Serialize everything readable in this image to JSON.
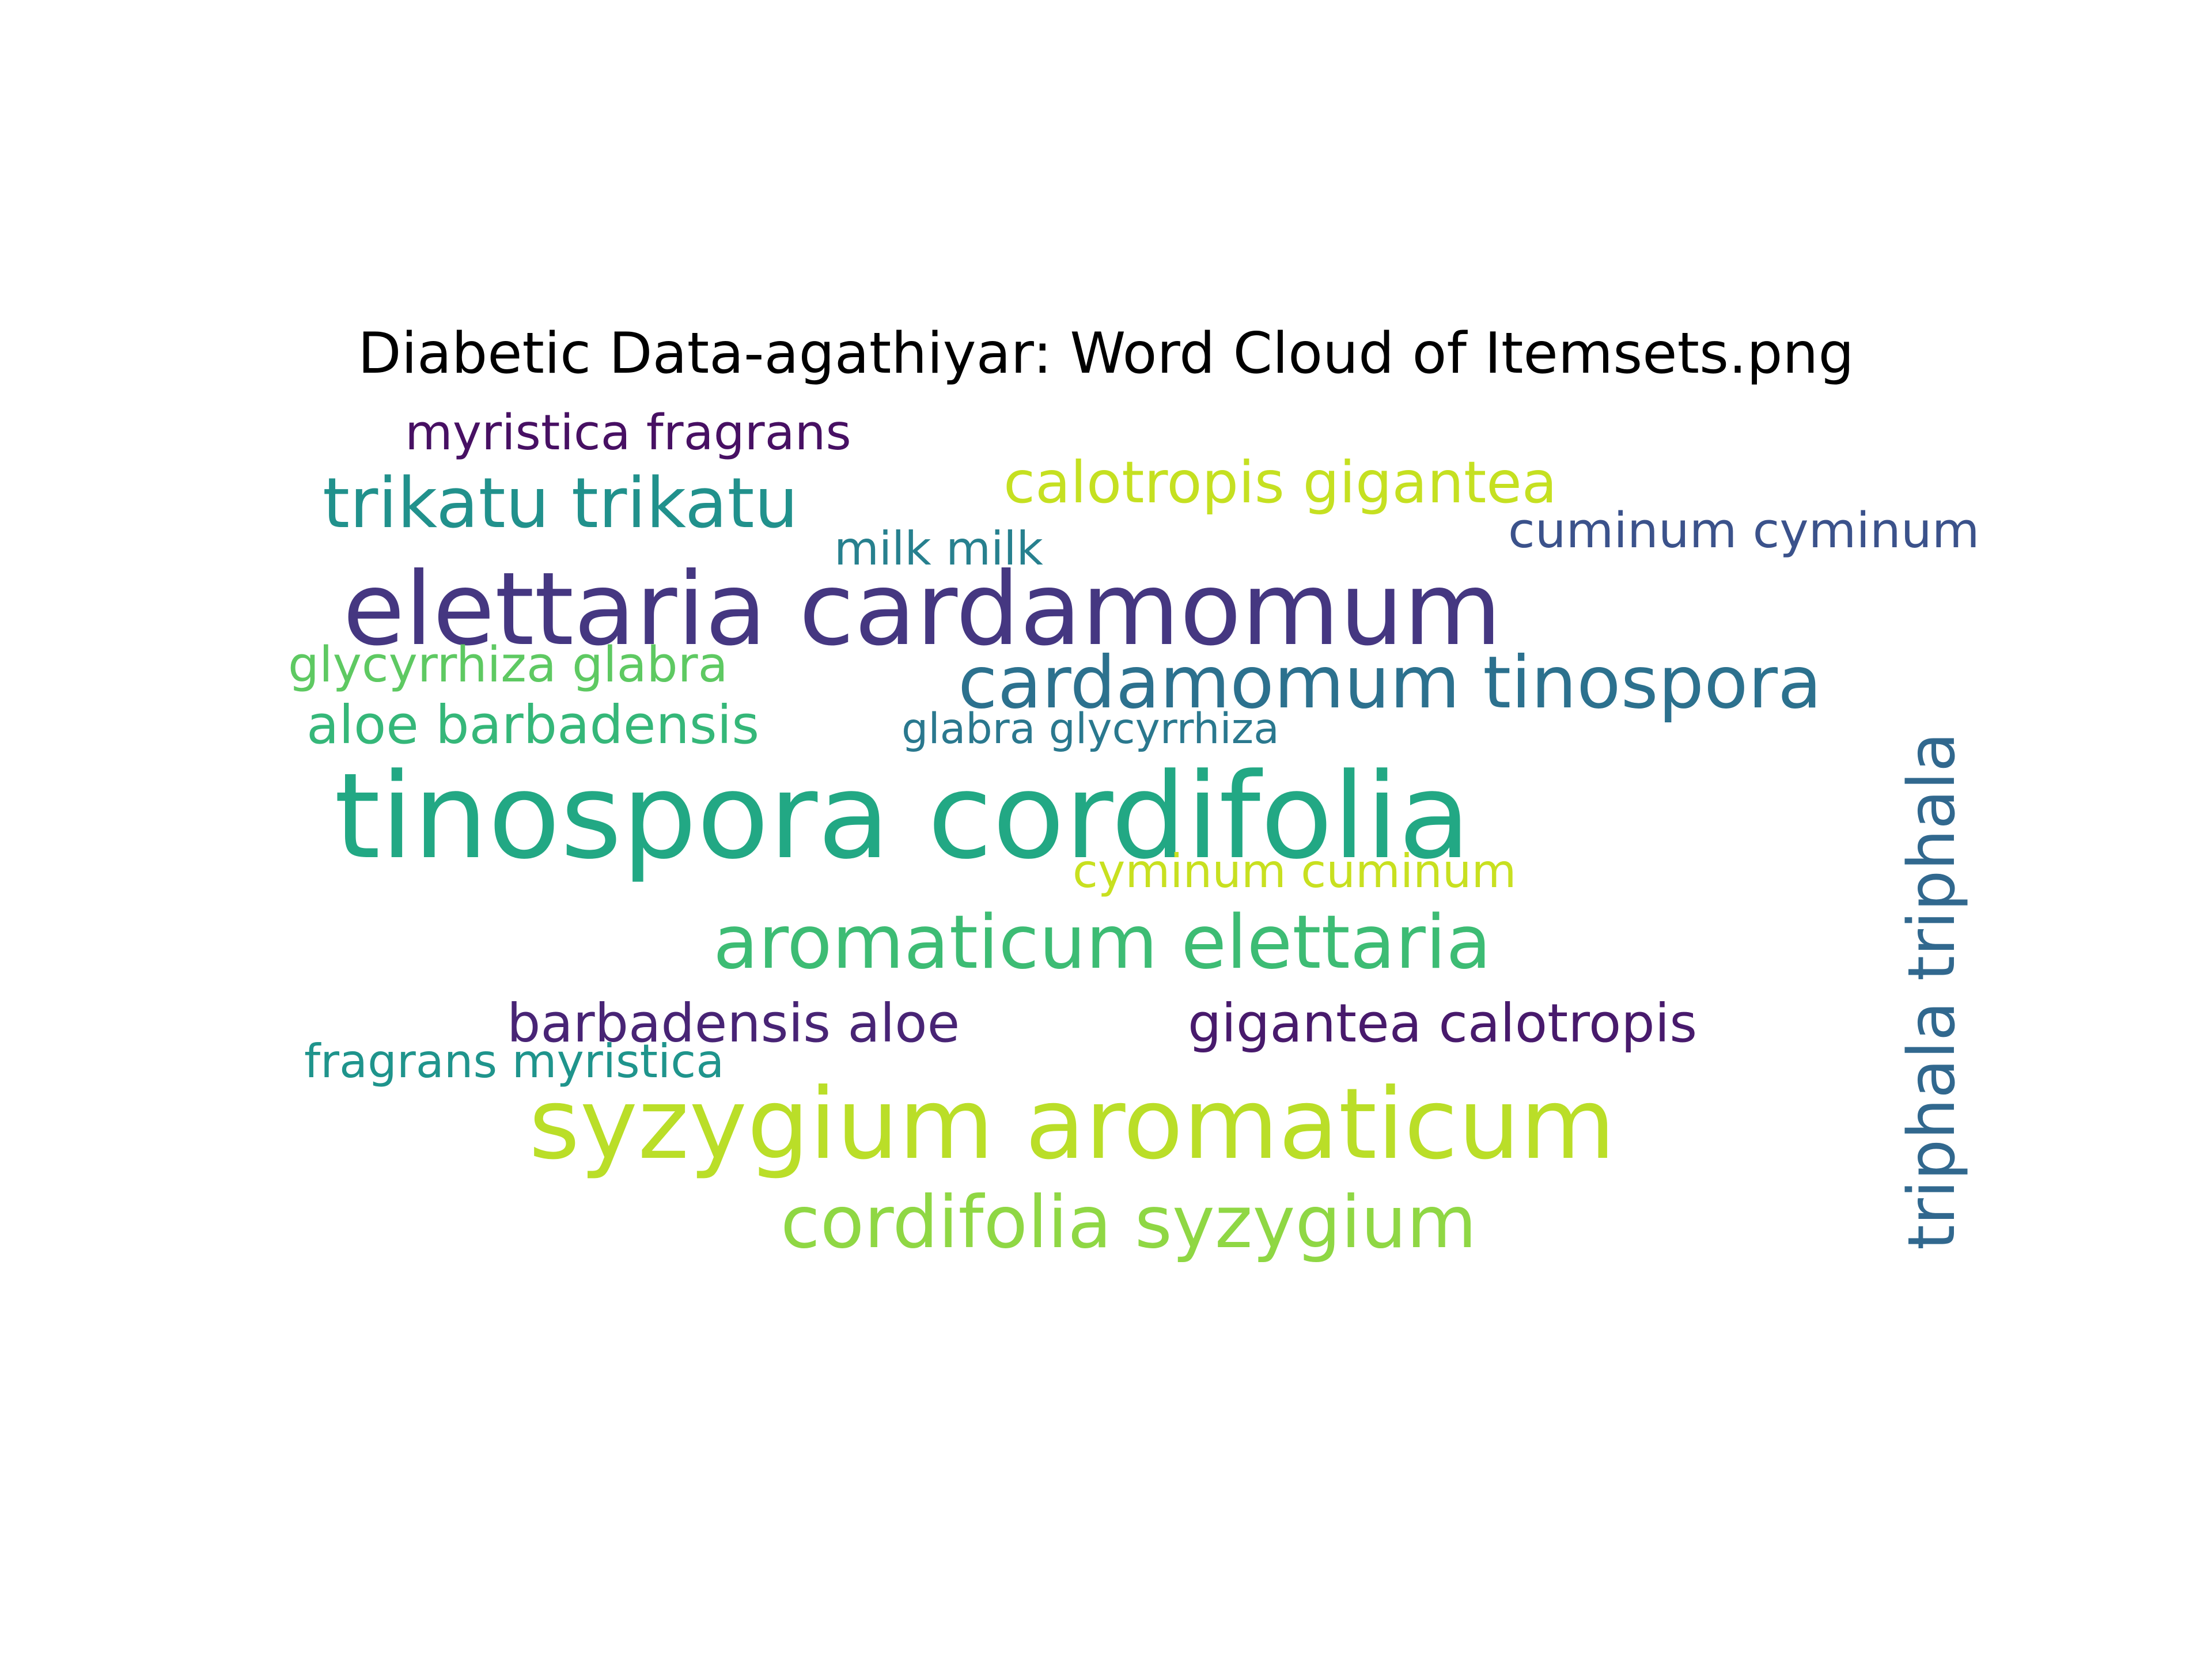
{
  "chart_data": {
    "type": "wordcloud",
    "title": "Diabetic Data-agathiyar: Word Cloud of Itemsets.png",
    "background": "#ffffff",
    "palette": "viridis",
    "words": [
      {
        "text": "tinospora cordifolia",
        "weight": 1.0,
        "color": "#22a884",
        "orientation": "horizontal"
      },
      {
        "text": "elettaria cardamomum",
        "weight": 0.85,
        "color": "#453781",
        "orientation": "horizontal"
      },
      {
        "text": "syzygium aromaticum",
        "weight": 0.82,
        "color": "#bade28",
        "orientation": "horizontal"
      },
      {
        "text": "aromaticum elettaria",
        "weight": 0.6,
        "color": "#3dbc74",
        "orientation": "horizontal"
      },
      {
        "text": "cordifolia syzygium",
        "weight": 0.6,
        "color": "#8fd744",
        "orientation": "horizontal"
      },
      {
        "text": "cardamomum tinospora",
        "weight": 0.6,
        "color": "#2c718e",
        "orientation": "horizontal"
      },
      {
        "text": "triphala triphala",
        "weight": 0.6,
        "color": "#31688e",
        "orientation": "vertical"
      },
      {
        "text": "trikatu trikatu",
        "weight": 0.55,
        "color": "#21918c",
        "orientation": "horizontal"
      },
      {
        "text": "calotropis gigantea",
        "weight": 0.5,
        "color": "#c5e021",
        "orientation": "horizontal"
      },
      {
        "text": "barbadensis aloe",
        "weight": 0.47,
        "color": "#482475",
        "orientation": "horizontal"
      },
      {
        "text": "gigantea calotropis",
        "weight": 0.47,
        "color": "#481a6c",
        "orientation": "horizontal"
      },
      {
        "text": "aloe barbadensis",
        "weight": 0.47,
        "color": "#35b779",
        "orientation": "horizontal"
      },
      {
        "text": "myristica fragrans",
        "weight": 0.42,
        "color": "#471063",
        "orientation": "horizontal"
      },
      {
        "text": "glycyrrhiza glabra",
        "weight": 0.4,
        "color": "#5ec962",
        "orientation": "horizontal"
      },
      {
        "text": "cuminum cyminum",
        "weight": 0.4,
        "color": "#3b528b",
        "orientation": "horizontal"
      },
      {
        "text": "fragrans myristica",
        "weight": 0.38,
        "color": "#1f948c",
        "orientation": "horizontal"
      },
      {
        "text": "cyminum cuminum",
        "weight": 0.38,
        "color": "#c8e020",
        "orientation": "horizontal"
      },
      {
        "text": "milk milk",
        "weight": 0.36,
        "color": "#27808e",
        "orientation": "horizontal"
      },
      {
        "text": "glabra glycyrrhiza",
        "weight": 0.34,
        "color": "#2a788e",
        "orientation": "horizontal"
      }
    ]
  }
}
